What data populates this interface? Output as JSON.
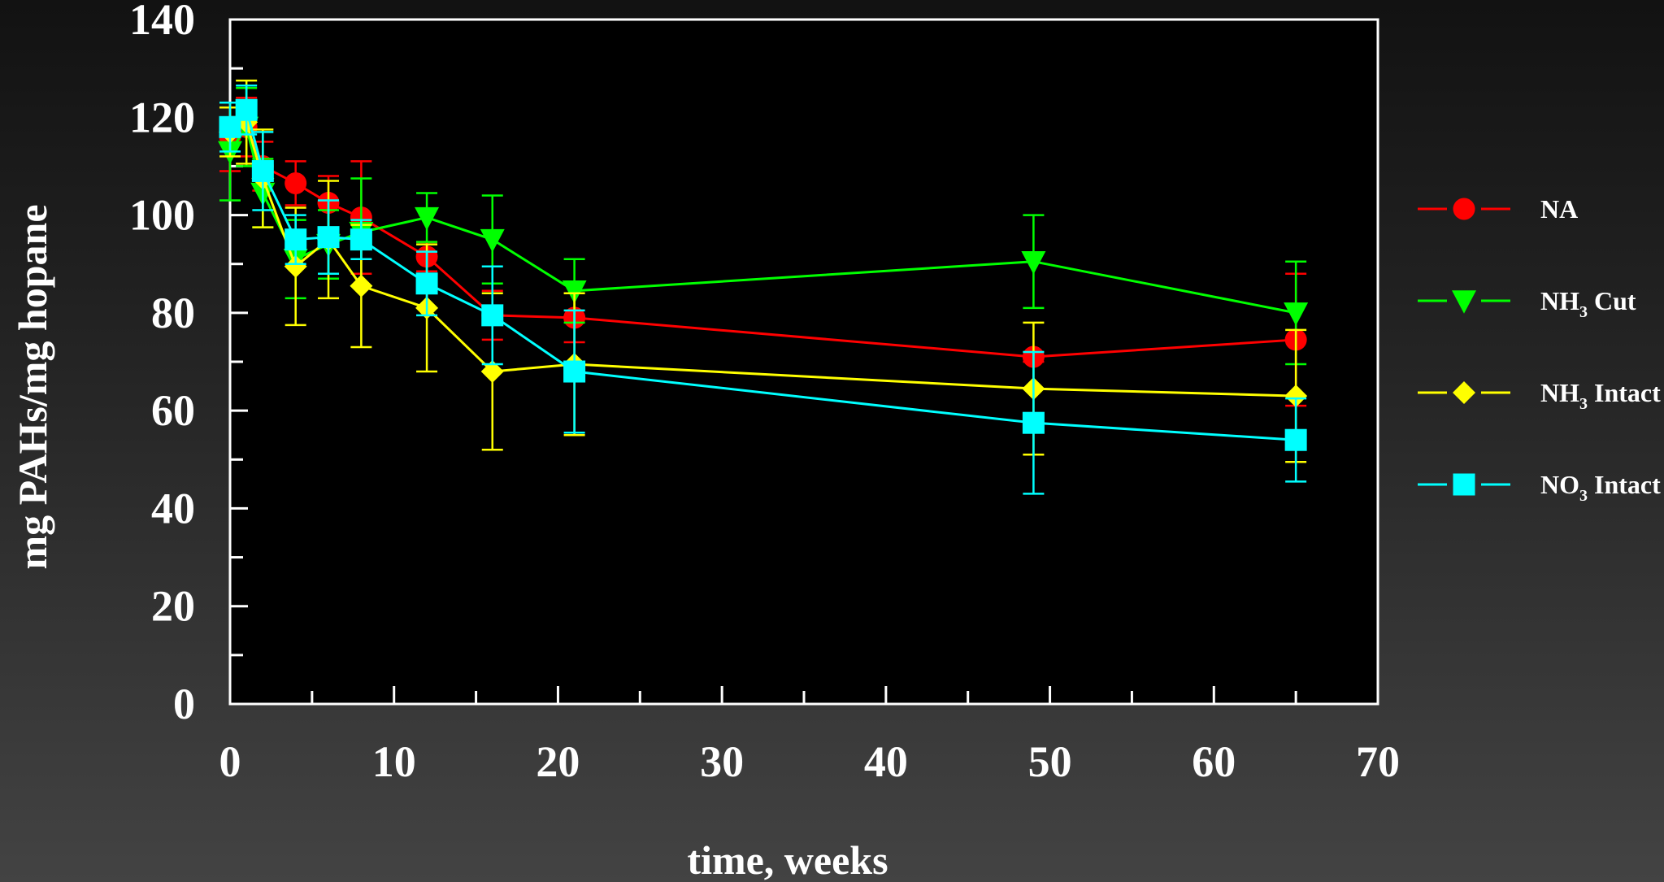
{
  "chart_data": {
    "type": "line",
    "title": "",
    "xlabel": "time, weeks",
    "ylabel": "mg PAHs/mg hopane",
    "xlim": [
      0,
      70
    ],
    "ylim": [
      0,
      140
    ],
    "xticks": [
      "0",
      "10",
      "20",
      "30",
      "40",
      "50",
      "60",
      "70"
    ],
    "yticks": [
      "0",
      "20",
      "40",
      "60",
      "80",
      "100",
      "120",
      "140"
    ],
    "grid": false,
    "legend_position": "right",
    "series": [
      {
        "name": "NA",
        "name_base": "NA",
        "name_sub": "",
        "name_rest": "",
        "color": "#ff0000",
        "marker": "circle",
        "x": [
          0,
          1,
          2,
          4,
          6,
          8,
          12,
          16,
          21,
          49,
          65
        ],
        "y": [
          116,
          118,
          110,
          106.5,
          102.5,
          99.5,
          91.5,
          79.5,
          79,
          71,
          74.5
        ],
        "err": [
          7,
          6,
          5,
          4.5,
          5.5,
          11.5,
          3,
          5,
          5,
          1,
          13.5
        ]
      },
      {
        "name": "NH3 Cut",
        "name_base": "NH",
        "name_sub": "3",
        "name_rest": " Cut",
        "color": "#00ff00",
        "marker": "triangle-down",
        "x": [
          0,
          1,
          2,
          4,
          6,
          8,
          12,
          16,
          21,
          49,
          65
        ],
        "y": [
          113,
          118,
          104.5,
          91,
          94,
          96.5,
          99.5,
          95,
          84.5,
          90.5,
          80
        ],
        "err": [
          10,
          8,
          7,
          8,
          7,
          11,
          5,
          9,
          6.5,
          9.5,
          10.5
        ]
      },
      {
        "name": "NH3 Intact",
        "name_base": "NH",
        "name_sub": "3",
        "name_rest": " Intact",
        "color": "#ffff00",
        "marker": "diamond",
        "x": [
          0,
          1,
          2,
          4,
          6,
          8,
          12,
          16,
          21,
          49,
          65
        ],
        "y": [
          117,
          119,
          107.5,
          89.5,
          95,
          85.5,
          81,
          68,
          69.5,
          64.5,
          63
        ],
        "err": [
          5,
          8.5,
          10,
          12,
          12,
          12.5,
          13,
          16,
          14.5,
          13.5,
          13.5
        ]
      },
      {
        "name": "NO3 Intact",
        "name_base": "NO",
        "name_sub": "3",
        "name_rest": " Intact",
        "color": "#00ffff",
        "marker": "square",
        "x": [
          0,
          1,
          2,
          4,
          6,
          8,
          12,
          16,
          21,
          49,
          65
        ],
        "y": [
          118,
          121.5,
          109,
          95,
          95.5,
          95,
          86,
          79.5,
          68,
          57.5,
          54
        ],
        "err": [
          5,
          5,
          8,
          5,
          7.5,
          4,
          6.5,
          10,
          12.5,
          14.5,
          8.5
        ]
      }
    ]
  }
}
